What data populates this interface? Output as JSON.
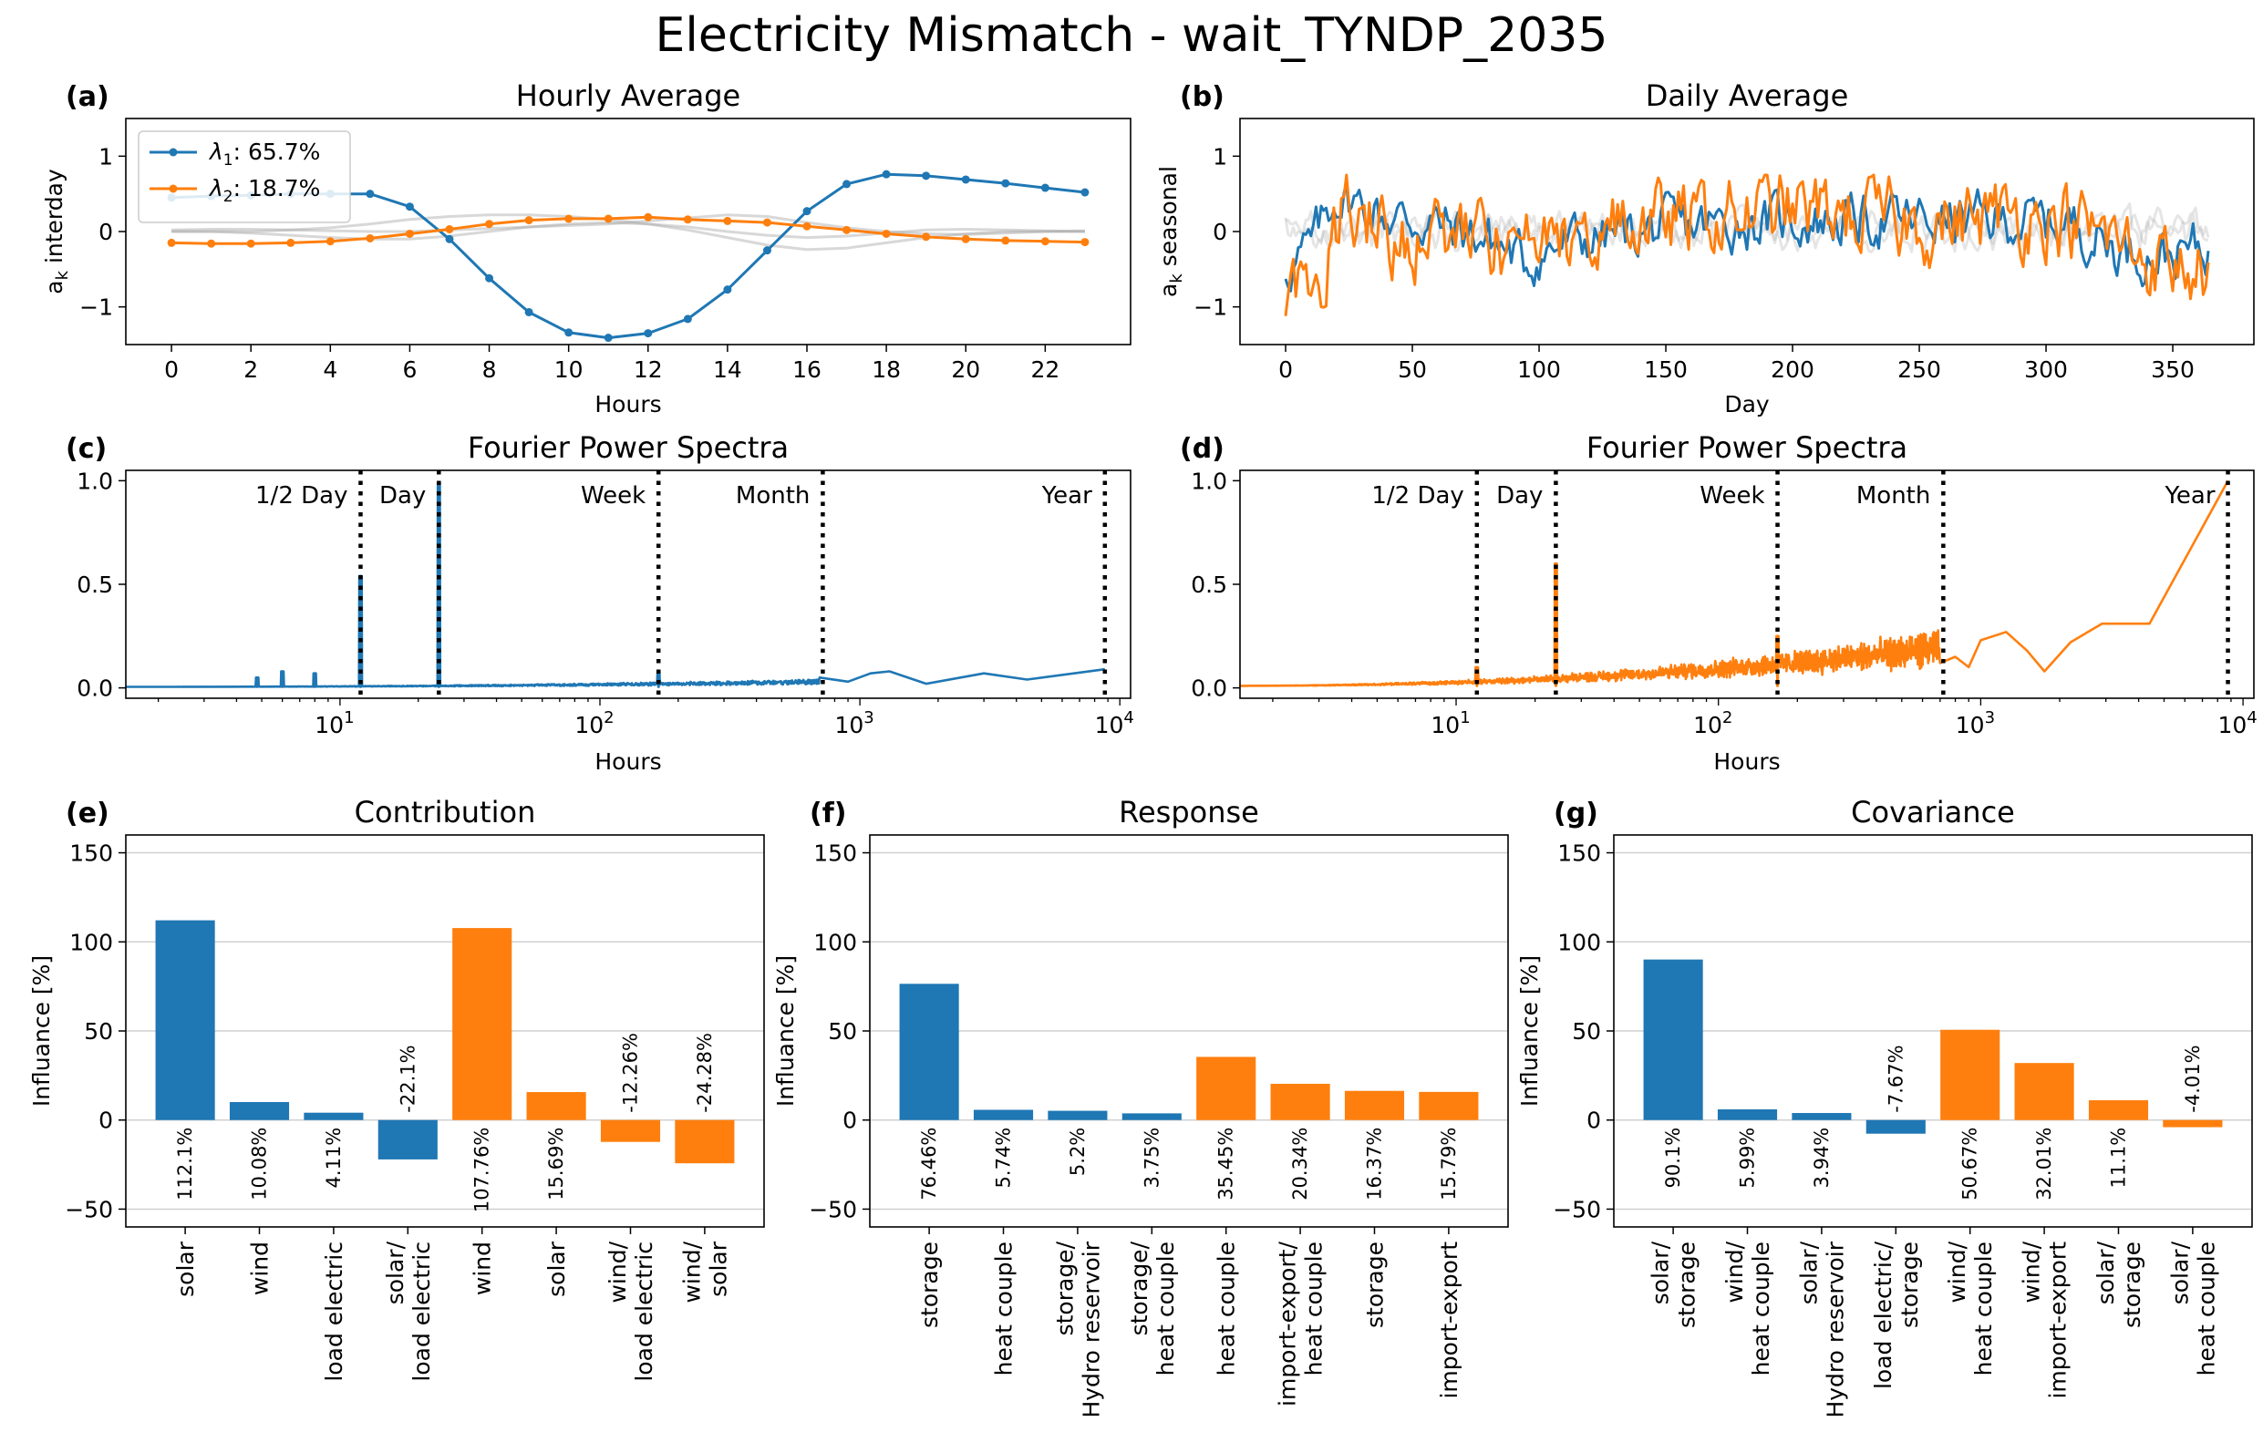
{
  "suptitle": "Electricity Mismatch - wait_TYNDP_2035",
  "colors": {
    "c1": "#1f77b4",
    "c2": "#ff7f0e",
    "gray": "#a9a9a9",
    "grid": "#d0d0d0"
  },
  "chart_data": [
    {
      "id": "a",
      "panel_label": "(a)",
      "type": "line",
      "title": "Hourly Average",
      "xlabel": "Hours",
      "ylabel": "a_k interday",
      "xlim": [
        -1.15,
        24.15
      ],
      "ylim": [
        -1.5,
        1.5
      ],
      "xticks": [
        0,
        2,
        4,
        6,
        8,
        10,
        12,
        14,
        16,
        18,
        20,
        22
      ],
      "yticks": [
        -1,
        0,
        1
      ],
      "legend": {
        "placement": "upper-left",
        "entries": [
          "λ1: 65.7%",
          "λ2: 18.7%"
        ]
      },
      "x": [
        0,
        1,
        2,
        3,
        4,
        5,
        6,
        7,
        8,
        9,
        10,
        11,
        12,
        13,
        14,
        15,
        16,
        17,
        18,
        19,
        20,
        21,
        22,
        23
      ],
      "series": [
        {
          "name": "λ1: 65.7%",
          "color": "c1",
          "values": [
            0.45,
            0.47,
            0.48,
            0.5,
            0.5,
            0.5,
            0.33,
            -0.1,
            -0.62,
            -1.07,
            -1.34,
            -1.41,
            -1.35,
            -1.16,
            -0.77,
            -0.25,
            0.27,
            0.63,
            0.76,
            0.74,
            0.69,
            0.64,
            0.58,
            0.52
          ]
        },
        {
          "name": "λ2: 18.7%",
          "color": "c2",
          "values": [
            -0.15,
            -0.16,
            -0.16,
            -0.15,
            -0.13,
            -0.09,
            -0.03,
            0.03,
            0.1,
            0.15,
            0.17,
            0.17,
            0.19,
            0.16,
            0.14,
            0.12,
            0.07,
            0.02,
            -0.03,
            -0.07,
            -0.1,
            -0.12,
            -0.13,
            -0.14
          ]
        },
        {
          "name": "",
          "color": "gray",
          "values": [
            0,
            0,
            0,
            0.02,
            0.05,
            0.1,
            0.16,
            0.2,
            0.22,
            0.22,
            0.2,
            0.16,
            0.1,
            0.02,
            -0.08,
            -0.18,
            -0.24,
            -0.22,
            -0.15,
            -0.08,
            -0.03,
            0,
            0,
            0
          ]
        },
        {
          "name": "",
          "color": "gray",
          "values": [
            0,
            0,
            -0.02,
            -0.05,
            -0.08,
            -0.1,
            -0.1,
            -0.06,
            0,
            0.06,
            0.1,
            0.12,
            0.1,
            0.06,
            0,
            -0.05,
            -0.08,
            -0.06,
            -0.02,
            0.02,
            0.03,
            0.02,
            0.01,
            0
          ]
        },
        {
          "name": "",
          "color": "gray",
          "values": [
            0.02,
            0.03,
            0.03,
            0.02,
            0.01,
            0,
            0,
            0.02,
            0.04,
            0.06,
            0.08,
            0.1,
            0.14,
            0.18,
            0.22,
            0.2,
            0.12,
            0.05,
            0,
            -0.03,
            -0.04,
            -0.02,
            0,
            0.01
          ]
        }
      ]
    },
    {
      "id": "b",
      "panel_label": "(b)",
      "type": "line",
      "title": "Daily Average",
      "xlabel": "Day",
      "ylabel": "a_k seasonal",
      "xlim": [
        -18,
        382
      ],
      "ylim": [
        -1.5,
        1.5
      ],
      "xticks": [
        0,
        50,
        100,
        150,
        200,
        250,
        300,
        350
      ],
      "yticks": [
        -1,
        0,
        1
      ],
      "x_range": [
        0,
        364
      ],
      "series": [
        {
          "name": "",
          "color": "c1",
          "envelope": [
            [
              0,
              -0.5
            ],
            [
              10,
              -0.2
            ],
            [
              20,
              0.5
            ],
            [
              40,
              0.2
            ],
            [
              60,
              0.1
            ],
            [
              80,
              -0.1
            ],
            [
              95,
              -0.4
            ],
            [
              110,
              -0.15
            ],
            [
              150,
              0.05
            ],
            [
              200,
              0.15
            ],
            [
              250,
              0.15
            ],
            [
              290,
              0.15
            ],
            [
              310,
              0.1
            ],
            [
              330,
              -0.25
            ],
            [
              350,
              -0.3
            ],
            [
              364,
              -0.2
            ]
          ],
          "noise": 0.28
        },
        {
          "name": "",
          "color": "c2",
          "envelope": [
            [
              0,
              -0.8
            ],
            [
              15,
              -0.5
            ],
            [
              25,
              0.4
            ],
            [
              45,
              -0.1
            ],
            [
              70,
              -0.05
            ],
            [
              90,
              -0.3
            ],
            [
              100,
              -0.3
            ],
            [
              120,
              0
            ],
            [
              160,
              0.15
            ],
            [
              200,
              0.3
            ],
            [
              250,
              0.1
            ],
            [
              300,
              0.25
            ],
            [
              320,
              -0.05
            ],
            [
              345,
              -0.4
            ],
            [
              364,
              -0.55
            ]
          ],
          "noise": 0.42
        },
        {
          "name": "",
          "color": "gray",
          "envelope": [
            [
              0,
              0
            ],
            [
              364,
              0
            ]
          ],
          "noise": 0.2
        },
        {
          "name": "",
          "color": "gray",
          "envelope": [
            [
              0,
              0.05
            ],
            [
              364,
              0.05
            ]
          ],
          "noise": 0.16
        }
      ]
    },
    {
      "id": "c",
      "panel_label": "(c)",
      "type": "line",
      "title": "Fourier Power Spectra",
      "xlabel": "Hours",
      "xscale": "log",
      "xlim": [
        1.5,
        11000
      ],
      "ylim": [
        -0.05,
        1.05
      ],
      "yticks": [
        0.0,
        0.5,
        1.0
      ],
      "xticks": [
        "10^1",
        "10^2",
        "10^3",
        "10^4"
      ],
      "markers": [
        {
          "label": "1/2 Day",
          "x": 12
        },
        {
          "label": "Day",
          "x": 24
        },
        {
          "label": "Week",
          "x": 168
        },
        {
          "label": "Month",
          "x": 720
        },
        {
          "label": "Year",
          "x": 8760
        }
      ],
      "series": [
        {
          "name": "",
          "color": "c1",
          "baseline": 0.005,
          "noise": 0.008,
          "rising": 0.02,
          "spikes": [
            [
              4.8,
              0.05
            ],
            [
              6,
              0.08
            ],
            [
              8,
              0.07
            ],
            [
              12,
              0.54
            ],
            [
              24,
              0.99
            ],
            [
              168,
              0.08
            ]
          ],
          "tail": [
            [
              700,
              0.05
            ],
            [
              900,
              0.03
            ],
            [
              1100,
              0.07
            ],
            [
              1300,
              0.08
            ],
            [
              1800,
              0.02
            ],
            [
              3000,
              0.07
            ],
            [
              4400,
              0.04
            ],
            [
              8760,
              0.09
            ]
          ]
        }
      ]
    },
    {
      "id": "d",
      "panel_label": "(d)",
      "type": "line",
      "title": "Fourier Power Spectra",
      "xlabel": "Hours",
      "xscale": "log",
      "xlim": [
        1.5,
        11000
      ],
      "ylim": [
        -0.05,
        1.05
      ],
      "yticks": [
        0.0,
        0.5,
        1.0
      ],
      "xticks": [
        "10^1",
        "10^2",
        "10^3",
        "10^4"
      ],
      "markers": [
        {
          "label": "1/2 Day",
          "x": 12
        },
        {
          "label": "Day",
          "x": 24
        },
        {
          "label": "Week",
          "x": 168
        },
        {
          "label": "Month",
          "x": 720
        },
        {
          "label": "Year",
          "x": 8760
        }
      ],
      "series": [
        {
          "name": "",
          "color": "c2",
          "baseline": 0.01,
          "noise": 0.06,
          "rising": 0.15,
          "spikes": [
            [
              12,
              0.1
            ],
            [
              24,
              0.6
            ],
            [
              168,
              0.25
            ]
          ],
          "tail": [
            [
              700,
              0.12
            ],
            [
              800,
              0.15
            ],
            [
              900,
              0.1
            ],
            [
              1000,
              0.23
            ],
            [
              1250,
              0.27
            ],
            [
              1500,
              0.18
            ],
            [
              1750,
              0.08
            ],
            [
              2200,
              0.22
            ],
            [
              2900,
              0.31
            ],
            [
              4400,
              0.31
            ],
            [
              8760,
              1.0
            ]
          ]
        }
      ]
    },
    {
      "id": "e",
      "panel_label": "(e)",
      "type": "bar",
      "title": "Contribution",
      "ylabel": "Influance [%]",
      "ylim": [
        -60,
        160
      ],
      "yticks": [
        -50,
        0,
        50,
        100,
        150
      ],
      "categories": [
        "solar",
        "wind",
        "load electric",
        "solar/\nload electric",
        "wind",
        "solar",
        "wind/\nload electric",
        "wind/\nsolar"
      ],
      "values": [
        112.1,
        10.08,
        4.11,
        -22.1,
        107.76,
        15.69,
        -12.26,
        -24.28
      ],
      "labels": [
        "112.1%",
        "10.08%",
        "4.11%",
        "-22.1%",
        "107.76%",
        "15.69%",
        "-12.26%",
        "-24.28%"
      ],
      "colors": [
        "c1",
        "c1",
        "c1",
        "c1",
        "c2",
        "c2",
        "c2",
        "c2"
      ]
    },
    {
      "id": "f",
      "panel_label": "(f)",
      "type": "bar",
      "title": "Response",
      "ylabel": "Influance [%]",
      "ylim": [
        -60,
        160
      ],
      "yticks": [
        -50,
        0,
        50,
        100,
        150
      ],
      "categories": [
        "storage",
        "heat couple",
        "storage/\nHydro reservoir",
        "storage/\nheat couple",
        "heat couple",
        "import-export/\nheat couple",
        "storage",
        "import-export"
      ],
      "values": [
        76.46,
        5.74,
        5.2,
        3.75,
        35.45,
        20.34,
        16.37,
        15.79
      ],
      "labels": [
        "76.46%",
        "5.74%",
        "5.2%",
        "3.75%",
        "35.45%",
        "20.34%",
        "16.37%",
        "15.79%"
      ],
      "colors": [
        "c1",
        "c1",
        "c1",
        "c1",
        "c2",
        "c2",
        "c2",
        "c2"
      ]
    },
    {
      "id": "g",
      "panel_label": "(g)",
      "type": "bar",
      "title": "Covariance",
      "ylabel": "Influance [%]",
      "ylim": [
        -60,
        160
      ],
      "yticks": [
        -50,
        0,
        50,
        100,
        150
      ],
      "categories": [
        "solar/\nstorage",
        "wind/\nheat couple",
        "solar/\nHydro reservoir",
        "load electric/\nstorage",
        "wind/\nheat couple",
        "wind/\nimport-export",
        "solar/\nstorage",
        "solar/\nheat couple"
      ],
      "values": [
        90.1,
        5.99,
        3.94,
        -7.67,
        50.67,
        32.01,
        11.1,
        -4.01
      ],
      "labels": [
        "90.1%",
        "5.99%",
        "3.94%",
        "-7.67%",
        "50.67%",
        "32.01%",
        "11.1%",
        "-4.01%"
      ],
      "colors": [
        "c1",
        "c1",
        "c1",
        "c1",
        "c2",
        "c2",
        "c2",
        "c2"
      ]
    }
  ]
}
